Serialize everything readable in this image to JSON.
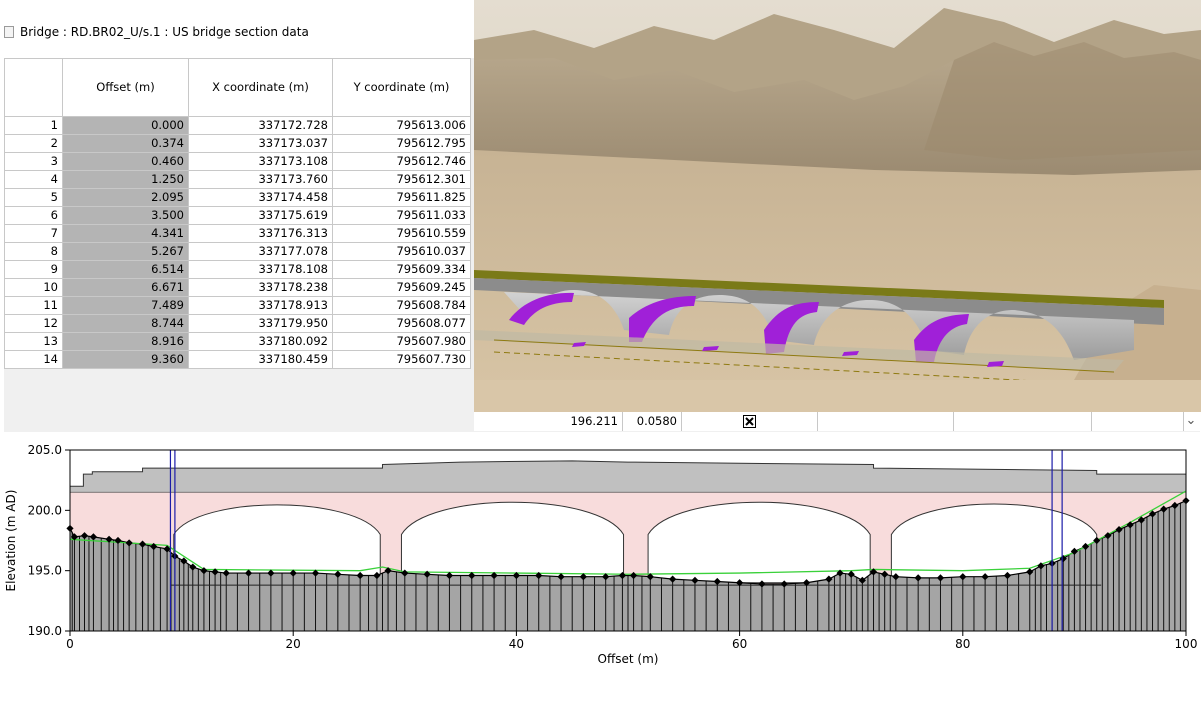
{
  "window": {
    "title": "Bridge : RD.BR02_U/s.1 : US bridge section data"
  },
  "table": {
    "headers": [
      "",
      "Offset (m)",
      "X coordinate (m)",
      "Y coordinate (m)"
    ],
    "rows": [
      {
        "idx": "1",
        "offset": "0.000",
        "x": "337172.728",
        "y": "795613.006"
      },
      {
        "idx": "2",
        "offset": "0.374",
        "x": "337173.037",
        "y": "795612.795"
      },
      {
        "idx": "3",
        "offset": "0.460",
        "x": "337173.108",
        "y": "795612.746"
      },
      {
        "idx": "4",
        "offset": "1.250",
        "x": "337173.760",
        "y": "795612.301"
      },
      {
        "idx": "5",
        "offset": "2.095",
        "x": "337174.458",
        "y": "795611.825"
      },
      {
        "idx": "6",
        "offset": "3.500",
        "x": "337175.619",
        "y": "795611.033"
      },
      {
        "idx": "7",
        "offset": "4.341",
        "x": "337176.313",
        "y": "795610.559"
      },
      {
        "idx": "8",
        "offset": "5.267",
        "x": "337177.078",
        "y": "795610.037"
      },
      {
        "idx": "9",
        "offset": "6.514",
        "x": "337178.108",
        "y": "795609.334"
      },
      {
        "idx": "10",
        "offset": "6.671",
        "x": "337178.238",
        "y": "795609.245"
      },
      {
        "idx": "11",
        "offset": "7.489",
        "x": "337178.913",
        "y": "795608.784"
      },
      {
        "idx": "12",
        "offset": "8.744",
        "x": "337179.950",
        "y": "795608.077"
      },
      {
        "idx": "13",
        "offset": "8.916",
        "x": "337180.092",
        "y": "795607.980"
      },
      {
        "idx": "14",
        "offset": "9.360",
        "x": "337180.459",
        "y": "795607.730"
      }
    ],
    "row14_extra": {
      "elevation": "196.211",
      "roughness": "0.0580",
      "checkbox_checked": true
    },
    "scroll_down_glyph": "⌄"
  },
  "colors": {
    "deck": "#c0c0c0",
    "opening": "#f8dcdc",
    "ground": "#a5a5a5",
    "wsl": "#3ad13a",
    "panel_lines": "#1c1ca8",
    "terrain": "#c9b79e",
    "arch_faces": "#a020d8"
  },
  "chart_data": {
    "type": "line",
    "xlabel": "Offset (m)",
    "ylabel": "Elevation (m AD)",
    "xlim": [
      0,
      100
    ],
    "ylim": [
      190,
      205
    ],
    "x_ticks": [
      "0",
      "20",
      "40",
      "60",
      "80",
      "100"
    ],
    "y_ticks": [
      "190.0",
      "195.0",
      "200.0",
      "205.0"
    ],
    "series": [
      {
        "id": "ground",
        "x": [
          0.0,
          0.4,
          1.3,
          2.1,
          3.5,
          4.3,
          5.3,
          6.5,
          7.5,
          8.7,
          9.4,
          10.2,
          11.0,
          12.0,
          13.0,
          14.0,
          16.0,
          18.0,
          20.0,
          22.0,
          24.0,
          26.0,
          27.5,
          28.5,
          30.0,
          32.0,
          34.0,
          36.0,
          38.0,
          40.0,
          42.0,
          44.0,
          46.0,
          48.0,
          49.5,
          50.5,
          52.0,
          54.0,
          56.0,
          58.0,
          60.0,
          62.0,
          64.0,
          66.0,
          68.0,
          69.0,
          70.0,
          71.0,
          72.0,
          73.0,
          74.0,
          76.0,
          78.0,
          80.0,
          82.0,
          84.0,
          86.0,
          87.0,
          88.0,
          89.0,
          90.0,
          91.0,
          92.0,
          93.0,
          94.0,
          95.0,
          96.0,
          97.0,
          98.0,
          99.0,
          100.0
        ],
        "y": [
          198.5,
          197.8,
          197.9,
          197.8,
          197.6,
          197.5,
          197.3,
          197.2,
          197.0,
          196.8,
          196.2,
          195.8,
          195.3,
          195.0,
          194.9,
          194.8,
          194.8,
          194.8,
          194.8,
          194.8,
          194.7,
          194.6,
          194.6,
          195.0,
          194.8,
          194.7,
          194.6,
          194.6,
          194.6,
          194.6,
          194.6,
          194.5,
          194.5,
          194.5,
          194.6,
          194.6,
          194.5,
          194.3,
          194.2,
          194.1,
          194.0,
          193.9,
          193.9,
          194.0,
          194.3,
          194.8,
          194.7,
          194.2,
          194.9,
          194.7,
          194.5,
          194.4,
          194.4,
          194.5,
          194.5,
          194.6,
          194.9,
          195.4,
          195.6,
          196.0,
          196.6,
          197.0,
          197.5,
          197.9,
          198.4,
          198.8,
          199.2,
          199.7,
          200.1,
          200.4,
          200.8
        ]
      },
      {
        "id": "water-surface",
        "x": [
          0,
          8.7,
          12,
          26,
          28,
          30,
          40,
          50,
          60,
          70,
          72,
          80,
          86,
          90,
          95,
          100
        ],
        "y": [
          197.6,
          197.1,
          195.1,
          195.0,
          195.3,
          194.9,
          194.8,
          194.7,
          194.8,
          195.0,
          195.1,
          195.0,
          195.2,
          196.5,
          199.0,
          201.6
        ]
      },
      {
        "id": "deck-top",
        "x": [
          0,
          1.2,
          1.2,
          2,
          2,
          6.5,
          6.5,
          28,
          28,
          35,
          45,
          50,
          60,
          72,
          72,
          92,
          92,
          100
        ],
        "y": [
          202.0,
          202.0,
          203.0,
          203.0,
          203.2,
          203.2,
          203.5,
          203.5,
          203.8,
          204.0,
          204.1,
          204.0,
          203.9,
          203.8,
          203.5,
          203.3,
          203.0,
          203.0
        ]
      }
    ],
    "deck_soffit": 201.5,
    "arches": [
      {
        "left": 9.3,
        "right": 27.8,
        "spring": 198.0,
        "crown": 201.1
      },
      {
        "left": 29.7,
        "right": 49.6,
        "spring": 198.0,
        "crown": 201.4
      },
      {
        "left": 51.8,
        "right": 71.7,
        "spring": 198.0,
        "crown": 201.4
      },
      {
        "left": 73.6,
        "right": 92.0,
        "spring": 198.0,
        "crown": 201.2
      }
    ],
    "pier_bottom": 194.0,
    "panel_markers_x": [
      9.0,
      9.4,
      88.0,
      88.9
    ],
    "low_chord_line": {
      "x1": 9.0,
      "x2": 92.4,
      "y": 193.8
    }
  }
}
